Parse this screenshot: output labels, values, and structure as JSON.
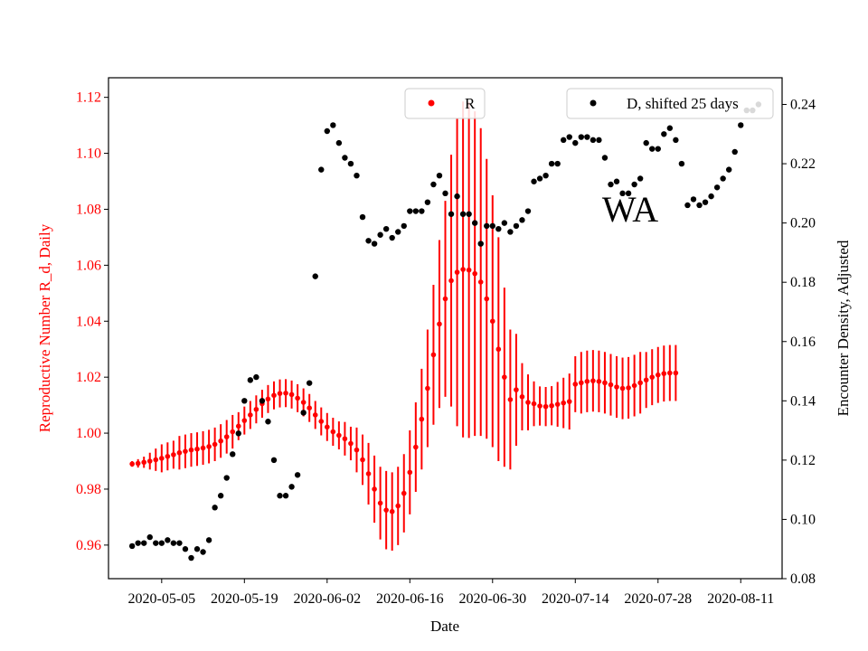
{
  "chart_data": {
    "type": "scatter",
    "annotation": "WA",
    "xlabel": "Date",
    "xlim": [
      "2020-04-26",
      "2020-08-18"
    ],
    "x_ticks": [
      "2020-05-05",
      "2020-05-19",
      "2020-06-02",
      "2020-06-16",
      "2020-06-30",
      "2020-07-14",
      "2020-07-28",
      "2020-08-11"
    ],
    "left_axis": {
      "label": "Reproductive Number R_d, Daily",
      "color": "#ff0000",
      "ylim": [
        0.948,
        1.127
      ],
      "ticks": [
        "0.96",
        "0.98",
        "1.00",
        "1.02",
        "1.04",
        "1.06",
        "1.08",
        "1.10",
        "1.12"
      ]
    },
    "right_axis": {
      "label": "Encounter Density, Adjusted",
      "color": "#000000",
      "ylim": [
        0.08,
        0.249
      ],
      "ticks": [
        "0.08",
        "0.10",
        "0.12",
        "0.14",
        "0.16",
        "0.18",
        "0.20",
        "0.22",
        "0.24"
      ]
    },
    "legend": [
      {
        "name": "R",
        "color": "#ff0000",
        "position": "top-center"
      },
      {
        "name": "D, shifted 25 days",
        "color": "#000000",
        "position": "top-right"
      }
    ],
    "series": [
      {
        "name": "R",
        "axis": "left",
        "color": "#ff0000",
        "start_date": "2020-04-30",
        "values": [
          0.989,
          0.9892,
          0.9896,
          0.99,
          0.9905,
          0.991,
          0.9917,
          0.9923,
          0.993,
          0.9935,
          0.994,
          0.9943,
          0.9947,
          0.9952,
          0.996,
          0.9972,
          0.9987,
          1.0005,
          1.0025,
          1.0045,
          1.0065,
          1.0085,
          1.0105,
          1.0122,
          1.0135,
          1.0142,
          1.0143,
          1.0138,
          1.0125,
          1.011,
          1.009,
          1.0065,
          1.0042,
          1.0022,
          1.0005,
          0.9992,
          0.998,
          0.9963,
          0.994,
          0.9905,
          0.9855,
          0.98,
          0.975,
          0.9725,
          0.972,
          0.974,
          0.9785,
          0.986,
          0.995,
          1.005,
          1.016,
          1.028,
          1.039,
          1.048,
          1.0545,
          1.0575,
          1.0585,
          1.0583,
          1.057,
          1.054,
          1.048,
          1.04,
          1.03,
          1.02,
          1.012,
          1.0155,
          1.013,
          1.011,
          1.0105,
          1.0097,
          1.0095,
          1.0098,
          1.0103,
          1.0108,
          1.0113,
          1.0175,
          1.018,
          1.0185,
          1.0187,
          1.0185,
          1.018,
          1.0173,
          1.0165,
          1.016,
          1.0162,
          1.017,
          1.018,
          1.019,
          1.02,
          1.0208,
          1.0213,
          1.0215,
          1.0215
        ],
        "errors": [
          0.001,
          0.0015,
          0.002,
          0.003,
          0.004,
          0.005,
          0.005,
          0.005,
          0.006,
          0.006,
          0.006,
          0.006,
          0.006,
          0.006,
          0.006,
          0.006,
          0.006,
          0.006,
          0.005,
          0.005,
          0.005,
          0.005,
          0.005,
          0.005,
          0.005,
          0.005,
          0.005,
          0.005,
          0.005,
          0.005,
          0.005,
          0.005,
          0.005,
          0.005,
          0.005,
          0.005,
          0.006,
          0.006,
          0.008,
          0.009,
          0.011,
          0.012,
          0.013,
          0.014,
          0.014,
          0.014,
          0.014,
          0.015,
          0.016,
          0.018,
          0.021,
          0.025,
          0.03,
          0.035,
          0.045,
          0.055,
          0.06,
          0.06,
          0.058,
          0.055,
          0.05,
          0.045,
          0.04,
          0.032,
          0.025,
          0.02,
          0.012,
          0.01,
          0.008,
          0.007,
          0.007,
          0.007,
          0.008,
          0.009,
          0.01,
          0.01,
          0.011,
          0.011,
          0.011,
          0.011,
          0.011,
          0.011,
          0.011,
          0.011,
          0.011,
          0.011,
          0.011,
          0.01,
          0.01,
          0.01,
          0.01,
          0.01,
          0.01
        ]
      },
      {
        "name": "D, shifted 25 days",
        "axis": "right",
        "color": "#000000",
        "start_date": "2020-04-30",
        "values": [
          0.091,
          0.092,
          0.092,
          0.094,
          0.092,
          0.092,
          0.093,
          0.092,
          0.092,
          0.09,
          0.087,
          0.09,
          0.089,
          0.093,
          0.104,
          0.108,
          0.114,
          0.122,
          0.129,
          0.14,
          0.147,
          0.148,
          0.14,
          0.133,
          0.12,
          0.108,
          0.108,
          0.111,
          0.115,
          0.136,
          0.146,
          0.182,
          0.218,
          0.231,
          0.233,
          0.227,
          0.222,
          0.22,
          0.216,
          0.202,
          0.194,
          0.193,
          0.196,
          0.198,
          0.195,
          0.197,
          0.199,
          0.204,
          0.204,
          0.204,
          0.207,
          0.213,
          0.216,
          0.21,
          0.203,
          0.209,
          0.203,
          0.203,
          0.2,
          0.193,
          0.199,
          0.199,
          0.198,
          0.2,
          0.197,
          0.199,
          0.201,
          0.204,
          0.214,
          0.215,
          0.216,
          0.22,
          0.22,
          0.228,
          0.229,
          0.227,
          0.229,
          0.229,
          0.228,
          0.228,
          0.222,
          0.213,
          0.214,
          0.21,
          0.21,
          0.213,
          0.215,
          0.227,
          0.225,
          0.225,
          0.23,
          0.232,
          0.228,
          0.22,
          0.206,
          0.208,
          0.206,
          0.207,
          0.209,
          0.212,
          0.215,
          0.218,
          0.224,
          0.233,
          0.238,
          0.238,
          0.24
        ]
      }
    ]
  }
}
